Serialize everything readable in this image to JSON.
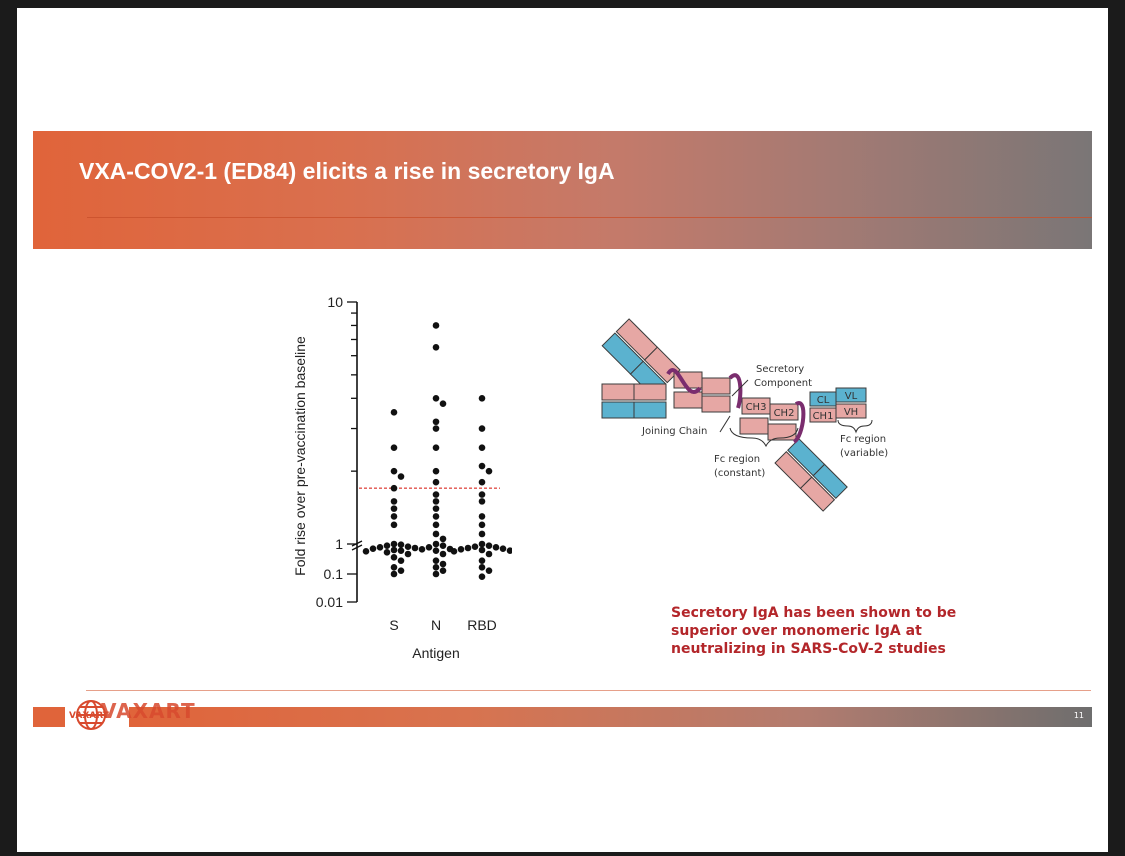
{
  "slide": {
    "title": "VXA-COV2-1 (ED84) elicits a rise in secretory IgA",
    "caption": "Secretory IgA has been shown to be superior over monomeric IgA at neutralizing in SARS-CoV-2 studies",
    "page_number": "11",
    "logo_text": "VAXART",
    "accent_color": "#e0643a",
    "caption_color": "#b3262a"
  },
  "chart_data": {
    "type": "scatter",
    "ylabel": "Fold rise over pre-vaccination baseline",
    "xlabel": "Antigen",
    "categories": [
      "S",
      "N",
      "RBD"
    ],
    "y_scale": "segmented (0.01–1 and 1–10)",
    "y_ticks": [
      "10",
      "1",
      "0.1",
      "0.01"
    ],
    "ylim": [
      0.01,
      10
    ],
    "reference_line": {
      "value": 1.7,
      "style": "dashed",
      "color": "#e0504a"
    },
    "series": [
      {
        "category": "S",
        "values": [
          3.5,
          2.5,
          2.0,
          1.9,
          1.7,
          1.5,
          1.4,
          1.3,
          1.2,
          1.0,
          0.98,
          0.95,
          0.92,
          0.9,
          0.88,
          0.86,
          0.84,
          0.82,
          0.8,
          0.78,
          0.75,
          0.7,
          0.6,
          0.5,
          0.3,
          0.2,
          0.1
        ]
      },
      {
        "category": "N",
        "values": [
          8.0,
          6.5,
          4.0,
          3.8,
          3.2,
          3.0,
          2.5,
          2.0,
          1.8,
          1.6,
          1.5,
          1.4,
          1.3,
          1.2,
          1.1,
          1.05,
          1.0,
          0.95,
          0.9,
          0.85,
          0.8,
          0.7,
          0.5,
          0.4,
          0.3,
          0.2,
          0.1
        ]
      },
      {
        "category": "RBD",
        "values": [
          4.0,
          3.0,
          2.5,
          2.1,
          2.0,
          1.8,
          1.6,
          1.5,
          1.3,
          1.2,
          1.1,
          1.0,
          0.95,
          0.92,
          0.9,
          0.88,
          0.86,
          0.84,
          0.82,
          0.8,
          0.78,
          0.7,
          0.5,
          0.3,
          0.2,
          0.08
        ]
      }
    ]
  },
  "diagram": {
    "labels": {
      "secretory_component": "Secretory Component",
      "joining_chain": "Joining Chain",
      "fc_constant": "Fc region (constant)",
      "fc_variable": "Fc region (variable)",
      "cl": "CL",
      "vl": "VL",
      "ch1": "CH1",
      "vh": "VH",
      "ch2": "CH2",
      "ch3": "CH3"
    }
  }
}
